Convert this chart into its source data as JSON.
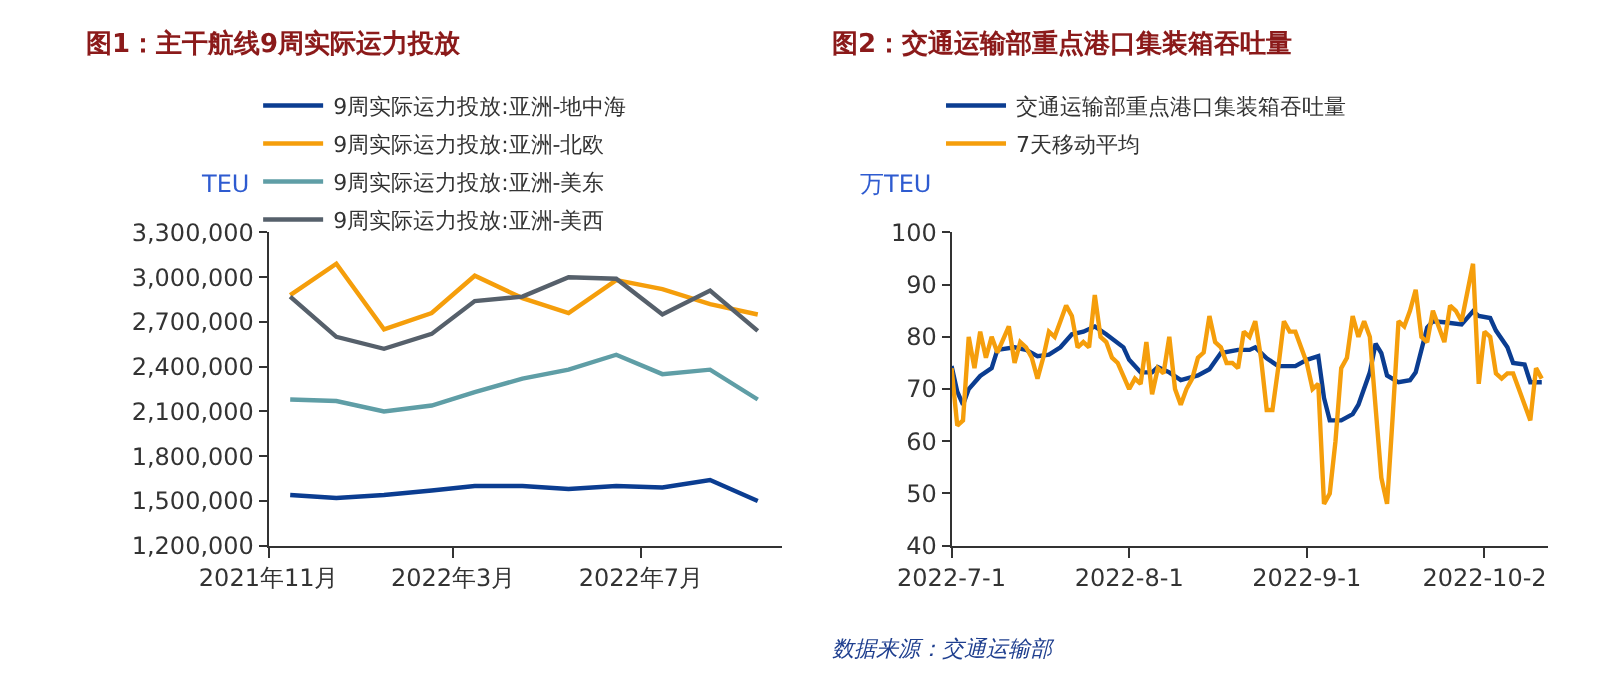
{
  "chart_data": [
    {
      "type": "line",
      "title": "图1：主干航线9周实际运力投放",
      "ylabel": "TEU",
      "x": [
        "2021-11-15",
        "2021-12-15",
        "2022-01-15",
        "2022-02-15",
        "2022-03-15",
        "2022-04-15",
        "2022-05-15",
        "2022-06-15",
        "2022-07-15",
        "2022-08-15",
        "2022-09-15"
      ],
      "series": [
        {
          "name": "9周实际运力投放:亚洲-地中海",
          "color": "#0b3d91",
          "values": [
            1540000,
            1520000,
            1540000,
            1570000,
            1600000,
            1600000,
            1580000,
            1600000,
            1590000,
            1640000,
            1500000
          ]
        },
        {
          "name": "9周实际运力投放:亚洲-北欧",
          "color": "#f59e0b",
          "values": [
            2880000,
            3090000,
            2650000,
            2760000,
            3010000,
            2860000,
            2760000,
            2980000,
            2920000,
            2820000,
            2750000
          ]
        },
        {
          "name": "9周实际运力投放:亚洲-美东",
          "color": "#5f9ea6",
          "values": [
            2180000,
            2170000,
            2100000,
            2140000,
            2230000,
            2320000,
            2380000,
            2480000,
            2350000,
            2380000,
            2180000
          ]
        },
        {
          "name": "9周实际运力投放:亚洲-美西",
          "color": "#56606b",
          "values": [
            2870000,
            2600000,
            2520000,
            2620000,
            2840000,
            2870000,
            3000000,
            2990000,
            2750000,
            2910000,
            2640000
          ]
        }
      ],
      "xlim": [
        "2021-11-01",
        "2022-10-01"
      ],
      "xticks": [
        {
          "value": "2021-11-01",
          "label": "2021年11月"
        },
        {
          "value": "2022-03-01",
          "label": "2022年3月"
        },
        {
          "value": "2022-07-01",
          "label": "2022年7月"
        }
      ],
      "ylim": [
        1200000,
        3300000
      ],
      "yticks": [
        {
          "value": 1200000,
          "label": "1,200,000"
        },
        {
          "value": 1500000,
          "label": "1,500,000"
        },
        {
          "value": 1800000,
          "label": "1,800,000"
        },
        {
          "value": 2100000,
          "label": "2,100,000"
        },
        {
          "value": 2400000,
          "label": "2,400,000"
        },
        {
          "value": 2700000,
          "label": "2,700,000"
        },
        {
          "value": 3000000,
          "label": "3,000,000"
        },
        {
          "value": 3300000,
          "label": "3,300,000"
        }
      ],
      "legend": "top",
      "marker": "none",
      "line_style": "solid"
    },
    {
      "type": "line",
      "title": "图2：交通运输部重点港口集装箱吞吐量",
      "ylabel": "万TEU",
      "series": [
        {
          "name": "交通运输部重点港口集装箱吞吐量",
          "color": "#0b3d91",
          "x": [
            "2022-07-01",
            "2022-07-02",
            "2022-07-03",
            "2022-07-04",
            "2022-07-06",
            "2022-07-08",
            "2022-07-09",
            "2022-07-12",
            "2022-07-14",
            "2022-07-16",
            "2022-07-18",
            "2022-07-20",
            "2022-07-22",
            "2022-07-24",
            "2022-07-26",
            "2022-07-28",
            "2022-07-31",
            "2022-08-01",
            "2022-08-03",
            "2022-08-05",
            "2022-08-06",
            "2022-08-08",
            "2022-08-10",
            "2022-08-13",
            "2022-08-15",
            "2022-08-17",
            "2022-08-20",
            "2022-08-22",
            "2022-08-23",
            "2022-08-25",
            "2022-08-27",
            "2022-08-30",
            "2022-09-01",
            "2022-09-03",
            "2022-09-04",
            "2022-09-05",
            "2022-09-07",
            "2022-09-09",
            "2022-09-10",
            "2022-09-12",
            "2022-09-13",
            "2022-09-14",
            "2022-09-15",
            "2022-09-17",
            "2022-09-19",
            "2022-09-20",
            "2022-09-22",
            "2022-09-23",
            "2022-09-25",
            "2022-09-28",
            "2022-09-30",
            "2022-10-01",
            "2022-10-03",
            "2022-10-04",
            "2022-10-06",
            "2022-10-07",
            "2022-10-09",
            "2022-10-10",
            "2022-10-12"
          ],
          "values": [
            74.4,
            69.5,
            67,
            70,
            72.5,
            74,
            77.5,
            78,
            77.5,
            76.3,
            76.6,
            78,
            80.5,
            81,
            82,
            80.5,
            78,
            75.6,
            73.2,
            73.2,
            74.2,
            73.2,
            71.7,
            72.6,
            73.8,
            76.9,
            77.5,
            77.5,
            78,
            75.9,
            74.4,
            74.4,
            75.6,
            76.3,
            68.3,
            64,
            64,
            65.2,
            67,
            73.2,
            78.7,
            76.9,
            72.6,
            71.3,
            71.7,
            73.2,
            81.8,
            83,
            82.8,
            82.4,
            84.9,
            84,
            83.6,
            81.2,
            78,
            75,
            74.7,
            71.3,
            71.3
          ]
        },
        {
          "name": "7天移动平均",
          "color": "#f59e0b",
          "x": [
            "2022-07-01",
            "2022-07-02",
            "2022-07-03",
            "2022-07-04",
            "2022-07-05",
            "2022-07-06",
            "2022-07-07",
            "2022-07-08",
            "2022-07-09",
            "2022-07-11",
            "2022-07-12",
            "2022-07-13",
            "2022-07-14",
            "2022-07-15",
            "2022-07-16",
            "2022-07-17",
            "2022-07-18",
            "2022-07-19",
            "2022-07-20",
            "2022-07-21",
            "2022-07-22",
            "2022-07-23",
            "2022-07-24",
            "2022-07-25",
            "2022-07-26",
            "2022-07-27",
            "2022-07-28",
            "2022-07-29",
            "2022-07-30",
            "2022-08-01",
            "2022-08-02",
            "2022-08-03",
            "2022-08-04",
            "2022-08-05",
            "2022-08-06",
            "2022-08-07",
            "2022-08-08",
            "2022-08-09",
            "2022-08-10",
            "2022-08-11",
            "2022-08-12",
            "2022-08-13",
            "2022-08-14",
            "2022-08-15",
            "2022-08-16",
            "2022-08-17",
            "2022-08-18",
            "2022-08-19",
            "2022-08-20",
            "2022-08-21",
            "2022-08-22",
            "2022-08-23",
            "2022-08-24",
            "2022-08-25",
            "2022-08-26",
            "2022-08-27",
            "2022-08-28",
            "2022-08-29",
            "2022-08-30",
            "2022-09-01",
            "2022-09-02",
            "2022-09-03",
            "2022-09-04",
            "2022-09-05",
            "2022-09-06",
            "2022-09-07",
            "2022-09-08",
            "2022-09-09",
            "2022-09-10",
            "2022-09-11",
            "2022-09-12",
            "2022-09-14",
            "2022-09-15",
            "2022-09-16",
            "2022-09-17",
            "2022-09-18",
            "2022-09-19",
            "2022-09-20",
            "2022-09-21",
            "2022-09-22",
            "2022-09-23",
            "2022-09-24",
            "2022-09-25",
            "2022-09-26",
            "2022-09-27",
            "2022-09-28",
            "2022-09-30",
            "2022-10-01",
            "2022-10-02",
            "2022-10-03",
            "2022-10-04",
            "2022-10-05",
            "2022-10-06",
            "2022-10-07",
            "2022-10-08",
            "2022-10-10",
            "2022-10-11",
            "2022-10-12"
          ],
          "values": [
            74,
            63,
            64,
            80,
            74,
            81,
            76,
            80,
            77,
            82,
            75,
            79,
            78,
            76,
            72,
            76,
            81,
            80,
            83,
            86,
            84,
            78,
            79,
            78,
            88,
            80,
            79,
            76,
            75,
            70,
            72,
            71,
            79,
            69,
            74,
            73,
            80,
            70,
            67,
            70,
            72,
            76,
            77,
            84,
            79,
            78,
            75,
            75,
            74,
            81,
            80,
            83,
            76,
            66,
            66,
            74,
            83,
            81,
            81,
            75,
            70,
            71,
            48,
            50,
            60,
            74,
            76,
            84,
            80,
            83,
            80,
            53,
            48,
            65,
            83,
            82,
            85,
            89,
            80,
            79,
            85,
            82,
            79,
            86,
            85,
            83,
            94,
            71,
            81,
            80,
            73,
            72,
            73,
            73,
            70,
            64,
            74,
            72
          ]
        }
      ],
      "xlim": [
        "2022-07-01",
        "2022-10-13"
      ],
      "xticks": [
        {
          "value": "2022-07-01",
          "label": "2022-7-1"
        },
        {
          "value": "2022-08-01",
          "label": "2022-8-1"
        },
        {
          "value": "2022-09-01",
          "label": "2022-9-1"
        },
        {
          "value": "2022-10-02",
          "label": "2022-10-2"
        }
      ],
      "ylim": [
        40,
        100
      ],
      "yticks": [
        40,
        50,
        60,
        70,
        80,
        90,
        100
      ],
      "annotations": [
        "数据来源：交通运输部"
      ],
      "legend": "top",
      "marker": "none",
      "line_style": "solid"
    }
  ]
}
